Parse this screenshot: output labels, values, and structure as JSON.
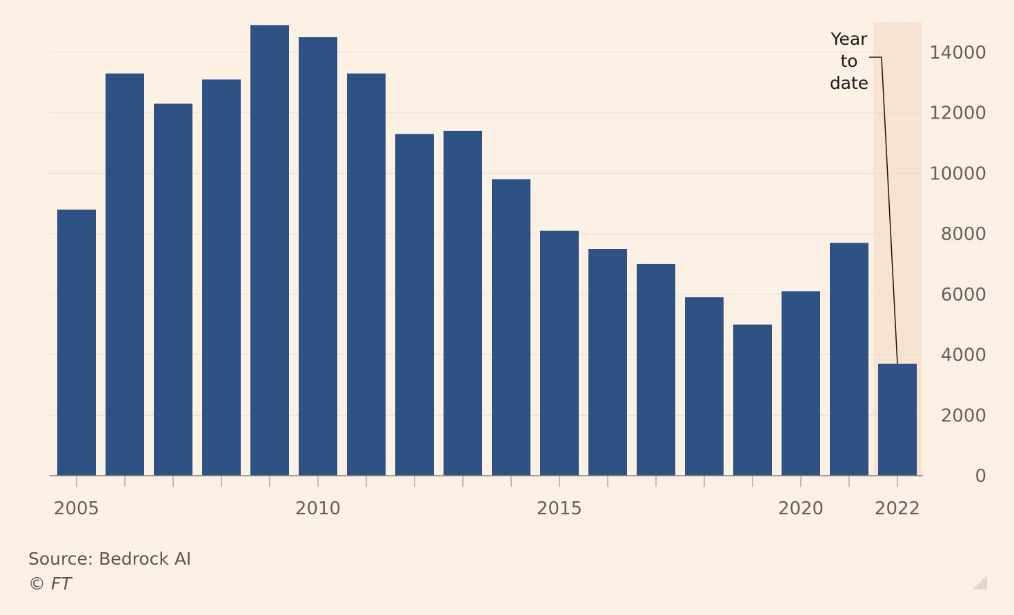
{
  "chart_data": {
    "type": "bar",
    "categories": [
      "2005",
      "2006",
      "2007",
      "2008",
      "2009",
      "2010",
      "2011",
      "2012",
      "2013",
      "2014",
      "2015",
      "2016",
      "2017",
      "2018",
      "2019",
      "2020",
      "2021",
      "2022"
    ],
    "values": [
      8800,
      13300,
      12300,
      13100,
      14900,
      14500,
      13300,
      11300,
      11400,
      9800,
      8100,
      7500,
      7000,
      5900,
      5000,
      6100,
      7700,
      3700
    ],
    "title": "",
    "xlabel": "",
    "ylabel": "",
    "ylim": [
      0,
      15000
    ],
    "y_ticks": [
      "0",
      "2000",
      "4000",
      "6000",
      "8000",
      "10000",
      "12000",
      "14000"
    ],
    "x_tick_labels": [
      "2005",
      "2010",
      "2015",
      "2020",
      "2022"
    ],
    "y_axis_side": "right",
    "grid": true,
    "highlight_category": "2022",
    "annotation": {
      "lines": [
        "Year",
        "to",
        "date"
      ],
      "target_category": "2022"
    }
  },
  "colors": {
    "background": "#fdf1e6",
    "bar": "#2e5284",
    "highlight_band": "#f8e3d3",
    "gridline": "#e8dcd0",
    "axis": "#8a837d"
  },
  "footer": {
    "source": "Source: Bedrock AI",
    "copyright": "© FT"
  }
}
